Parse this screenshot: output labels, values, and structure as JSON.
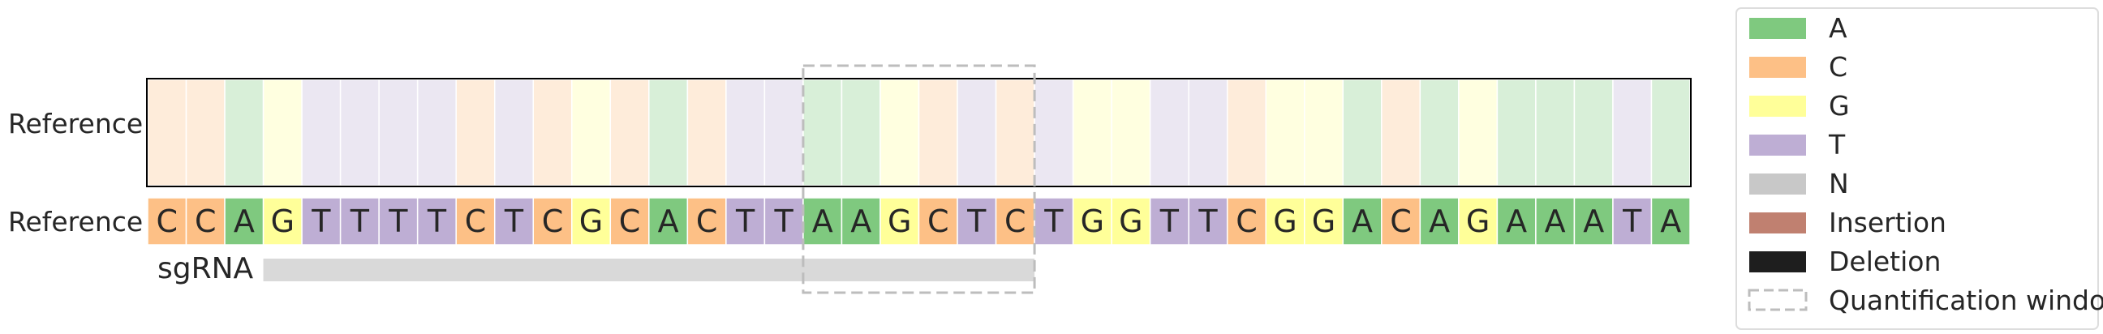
{
  "chart_data": {
    "type": "heatmap",
    "row_labels": [
      "Reference",
      "Reference"
    ],
    "sgrna_label": "sgRNA",
    "sequence": [
      "C",
      "C",
      "A",
      "G",
      "T",
      "T",
      "T",
      "T",
      "C",
      "T",
      "C",
      "G",
      "C",
      "A",
      "C",
      "T",
      "T",
      "A",
      "A",
      "G",
      "C",
      "T",
      "C",
      "T",
      "G",
      "G",
      "T",
      "T",
      "C",
      "G",
      "G",
      "A",
      "C",
      "A",
      "G",
      "A",
      "A",
      "A",
      "T",
      "A"
    ],
    "sgrna_span": {
      "start_index": 3,
      "end_index": 22
    },
    "quantification_window": {
      "start_index": 17,
      "end_index": 22
    },
    "colors": {
      "A": "#7FC97F",
      "C": "#FDC086",
      "G": "#FFFF99",
      "T": "#BEAED4",
      "N": "#C8C8C8",
      "Insertion": "#C08070",
      "Deletion": "#1E1E1E",
      "sgrna_bar": "#D9D9D9",
      "window_stroke": "#BDBDBD"
    },
    "legend": [
      {
        "key": "A",
        "label": "A"
      },
      {
        "key": "C",
        "label": "C"
      },
      {
        "key": "G",
        "label": "G"
      },
      {
        "key": "T",
        "label": "T"
      },
      {
        "key": "N",
        "label": "N"
      },
      {
        "key": "Insertion",
        "label": "Insertion"
      },
      {
        "key": "Deletion",
        "label": "Deletion"
      },
      {
        "key": "window",
        "label": "Quantification window"
      }
    ],
    "legend_position": "right"
  }
}
